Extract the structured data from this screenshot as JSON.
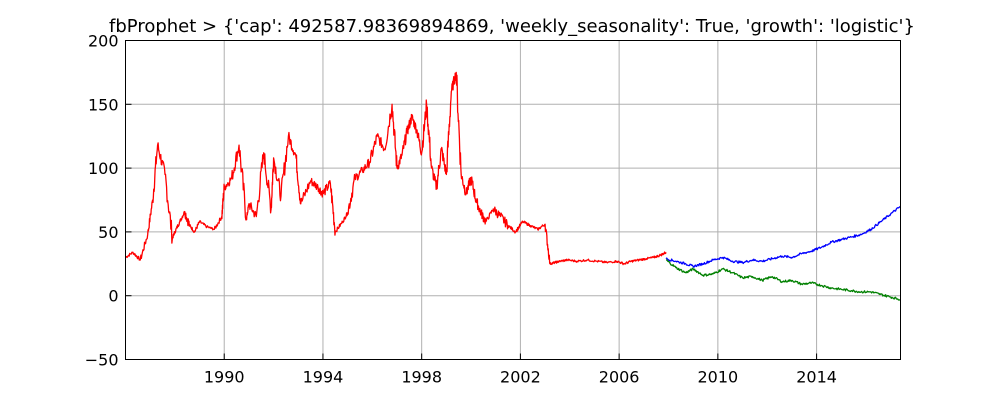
{
  "chart_data": {
    "type": "line",
    "title": "fbProphet > {'cap': 492587.98369894869, 'weekly_seasonality': True, 'growth': 'logistic'}",
    "xlabel": "",
    "ylabel": "",
    "xlim": [
      1986.0,
      2017.4
    ],
    "ylim": [
      -50,
      200
    ],
    "x_ticks": [
      1990,
      1994,
      1998,
      2002,
      2006,
      2010,
      2014
    ],
    "y_ticks": [
      -50,
      0,
      50,
      100,
      150,
      200
    ],
    "y_tick_labels": [
      "−50",
      "0",
      "50",
      "100",
      "150",
      "200"
    ],
    "grid": true,
    "legend": "none",
    "series": [
      {
        "color": "#ff0000",
        "x": [
          1986.0,
          1986.3,
          1986.6,
          1986.9,
          1987.1,
          1987.3,
          1987.6,
          1987.9,
          1988.0,
          1988.2,
          1988.4,
          1988.6,
          1988.8,
          1989.0,
          1989.3,
          1989.6,
          1989.9,
          1990.0,
          1990.3,
          1990.6,
          1990.9,
          1991.0,
          1991.3,
          1991.6,
          1991.9,
          1992.0,
          1992.3,
          1992.6,
          1992.9,
          1993.1,
          1993.5,
          1993.8,
          1994.0,
          1994.3,
          1994.5,
          1994.8,
          1995.0,
          1995.3,
          1995.6,
          1995.9,
          1996.2,
          1996.5,
          1996.8,
          1997.0,
          1997.2,
          1997.4,
          1997.6,
          1997.8,
          1998.0,
          1998.2,
          1998.4,
          1998.6,
          1998.8,
          1999.0,
          1999.2,
          1999.4,
          1999.6,
          1999.8,
          2000.0,
          2000.2,
          2000.4,
          2000.6,
          2000.9,
          2001.2,
          2001.5,
          2001.8,
          2002.1,
          2002.4,
          2002.7,
          2003.0,
          2003.2,
          2003.4,
          2003.6,
          2003.9,
          2004.3,
          2004.7,
          2005.1,
          2005.5,
          2005.9,
          2006.2,
          2006.5,
          2006.8,
          2007.1,
          2007.4,
          2007.7,
          2007.9
        ],
        "y": [
          30,
          34,
          28,
          48,
          75,
          118,
          95,
          45,
          50,
          58,
          66,
          55,
          50,
          58,
          54,
          52,
          62,
          85,
          92,
          118,
          60,
          72,
          62,
          112,
          68,
          108,
          78,
          125,
          110,
          72,
          90,
          85,
          80,
          88,
          50,
          58,
          65,
          92,
          98,
          105,
          125,
          115,
          150,
          100,
          110,
          128,
          140,
          130,
          112,
          150,
          100,
          85,
          115,
          95,
          160,
          175,
          95,
          80,
          92,
          75,
          65,
          58,
          68,
          62,
          55,
          50,
          58,
          55,
          52,
          56,
          25,
          26,
          27,
          28,
          27,
          28,
          27,
          26,
          27,
          25,
          27,
          28,
          29,
          30,
          32,
          34
        ]
      },
      {
        "color": "#0000ff",
        "x": [
          2007.9,
          2008.3,
          2008.7,
          2009.0,
          2009.4,
          2009.8,
          2010.2,
          2010.6,
          2011.0,
          2011.4,
          2011.8,
          2012.2,
          2012.6,
          2013.0,
          2013.4,
          2013.8,
          2014.2,
          2014.6,
          2015.0,
          2015.4,
          2015.8,
          2016.2,
          2016.6,
          2017.0,
          2017.4
        ],
        "y": [
          29,
          27,
          25,
          23,
          25,
          28,
          30,
          27,
          26,
          28,
          27,
          29,
          31,
          30,
          33,
          35,
          38,
          42,
          44,
          46,
          48,
          52,
          58,
          64,
          70
        ]
      },
      {
        "color": "#008000",
        "x": [
          2007.9,
          2008.3,
          2008.7,
          2009.0,
          2009.4,
          2009.8,
          2010.2,
          2010.6,
          2011.0,
          2011.4,
          2011.8,
          2012.2,
          2012.6,
          2013.0,
          2013.4,
          2013.8,
          2014.2,
          2014.6,
          2015.0,
          2015.4,
          2015.8,
          2016.2,
          2016.6,
          2017.0,
          2017.4
        ],
        "y": [
          28,
          22,
          18,
          21,
          16,
          17,
          21,
          18,
          14,
          15,
          12,
          15,
          11,
          12,
          9,
          10,
          8,
          6,
          5,
          4,
          3,
          3,
          1,
          -1,
          -3
        ]
      }
    ]
  }
}
